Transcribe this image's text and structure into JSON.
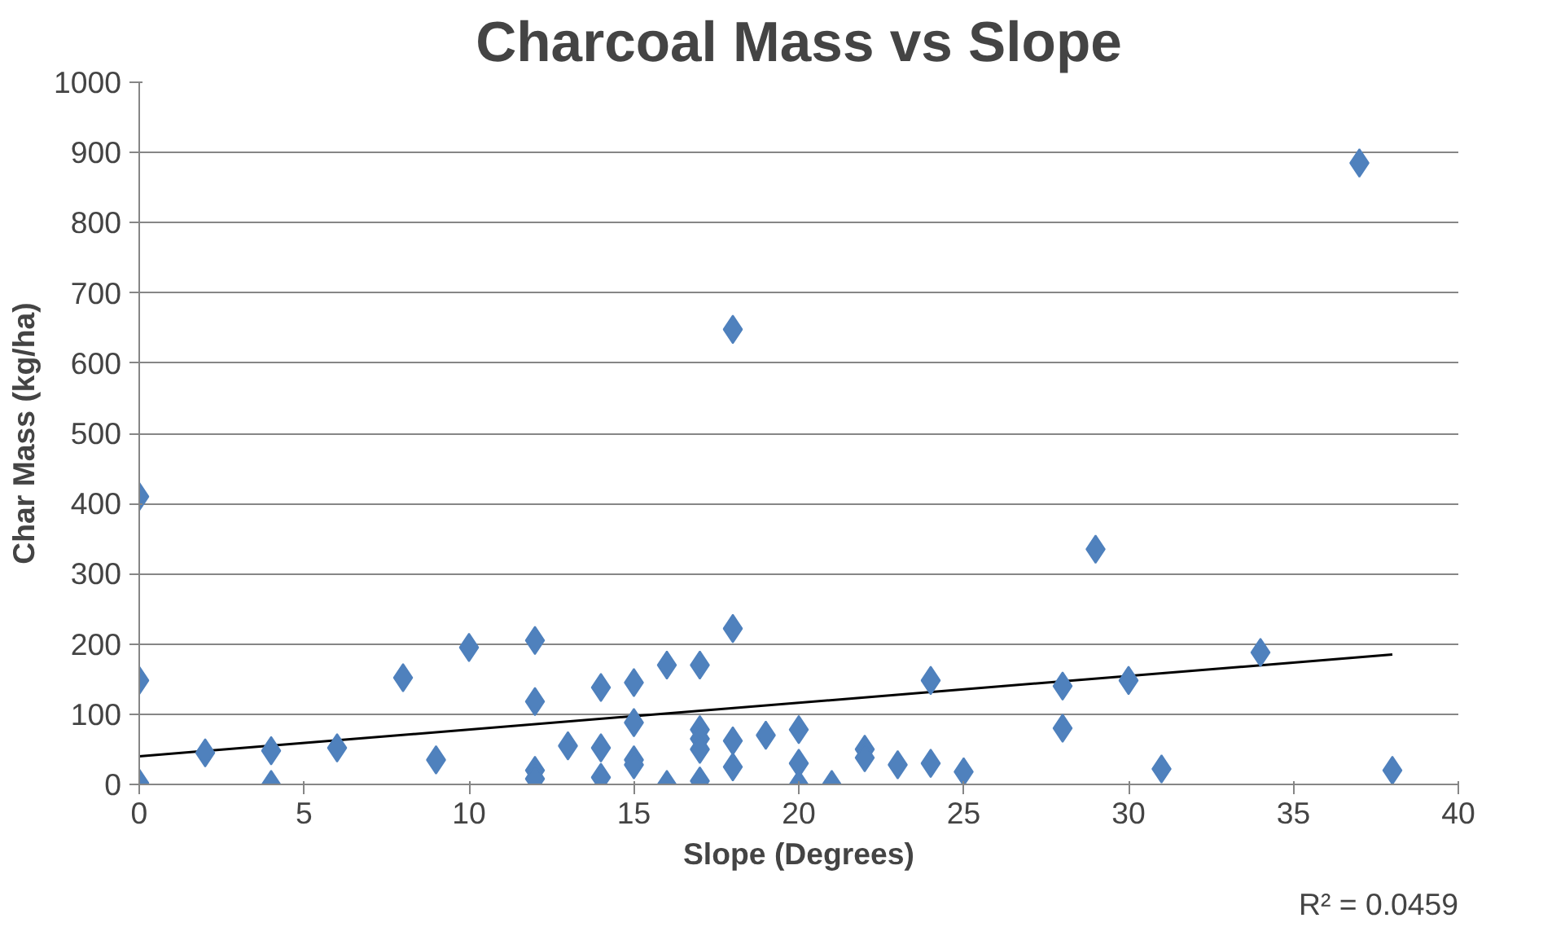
{
  "chart_data": {
    "type": "scatter",
    "title": "Charcoal Mass vs Slope",
    "xlabel": "Slope (Degrees)",
    "ylabel": "Char Mass (kg/ha)",
    "xlim": [
      0,
      40
    ],
    "xticks": [
      0,
      5,
      10,
      15,
      20,
      25,
      30,
      35,
      40
    ],
    "ylim": [
      0,
      1000
    ],
    "yticks": [
      0,
      100,
      200,
      300,
      400,
      500,
      600,
      700,
      800,
      900,
      1000
    ],
    "grid": "y",
    "marker": "diamond",
    "series": [
      {
        "color": "#4f81bd",
        "x": [
          0,
          0,
          0,
          2,
          4,
          4,
          6,
          8,
          9,
          10,
          12,
          12,
          12,
          12,
          13,
          14,
          14,
          14,
          15,
          15,
          15,
          15,
          16,
          16,
          17,
          17,
          17,
          17,
          17,
          18,
          18,
          18,
          18,
          19,
          20,
          20,
          20,
          21,
          22,
          22,
          23,
          24,
          24,
          25,
          28,
          28,
          29,
          30,
          31,
          34,
          37,
          38
        ],
        "values": [
          410,
          148,
          2,
          45,
          48,
          0,
          52,
          152,
          35,
          195,
          205,
          118,
          20,
          8,
          55,
          138,
          52,
          10,
          145,
          88,
          35,
          28,
          170,
          0,
          170,
          78,
          65,
          50,
          5,
          648,
          222,
          62,
          25,
          70,
          78,
          30,
          0,
          0,
          50,
          38,
          28,
          148,
          30,
          18,
          140,
          80,
          335,
          148,
          22,
          188,
          885,
          20
        ]
      },
      {
        "type": "line",
        "color": "#000000",
        "line_style": "solid",
        "marker": "none",
        "x": [
          0,
          38
        ],
        "values": [
          40,
          185
        ]
      }
    ],
    "annotations": [
      "R² = 0.0459"
    ]
  }
}
